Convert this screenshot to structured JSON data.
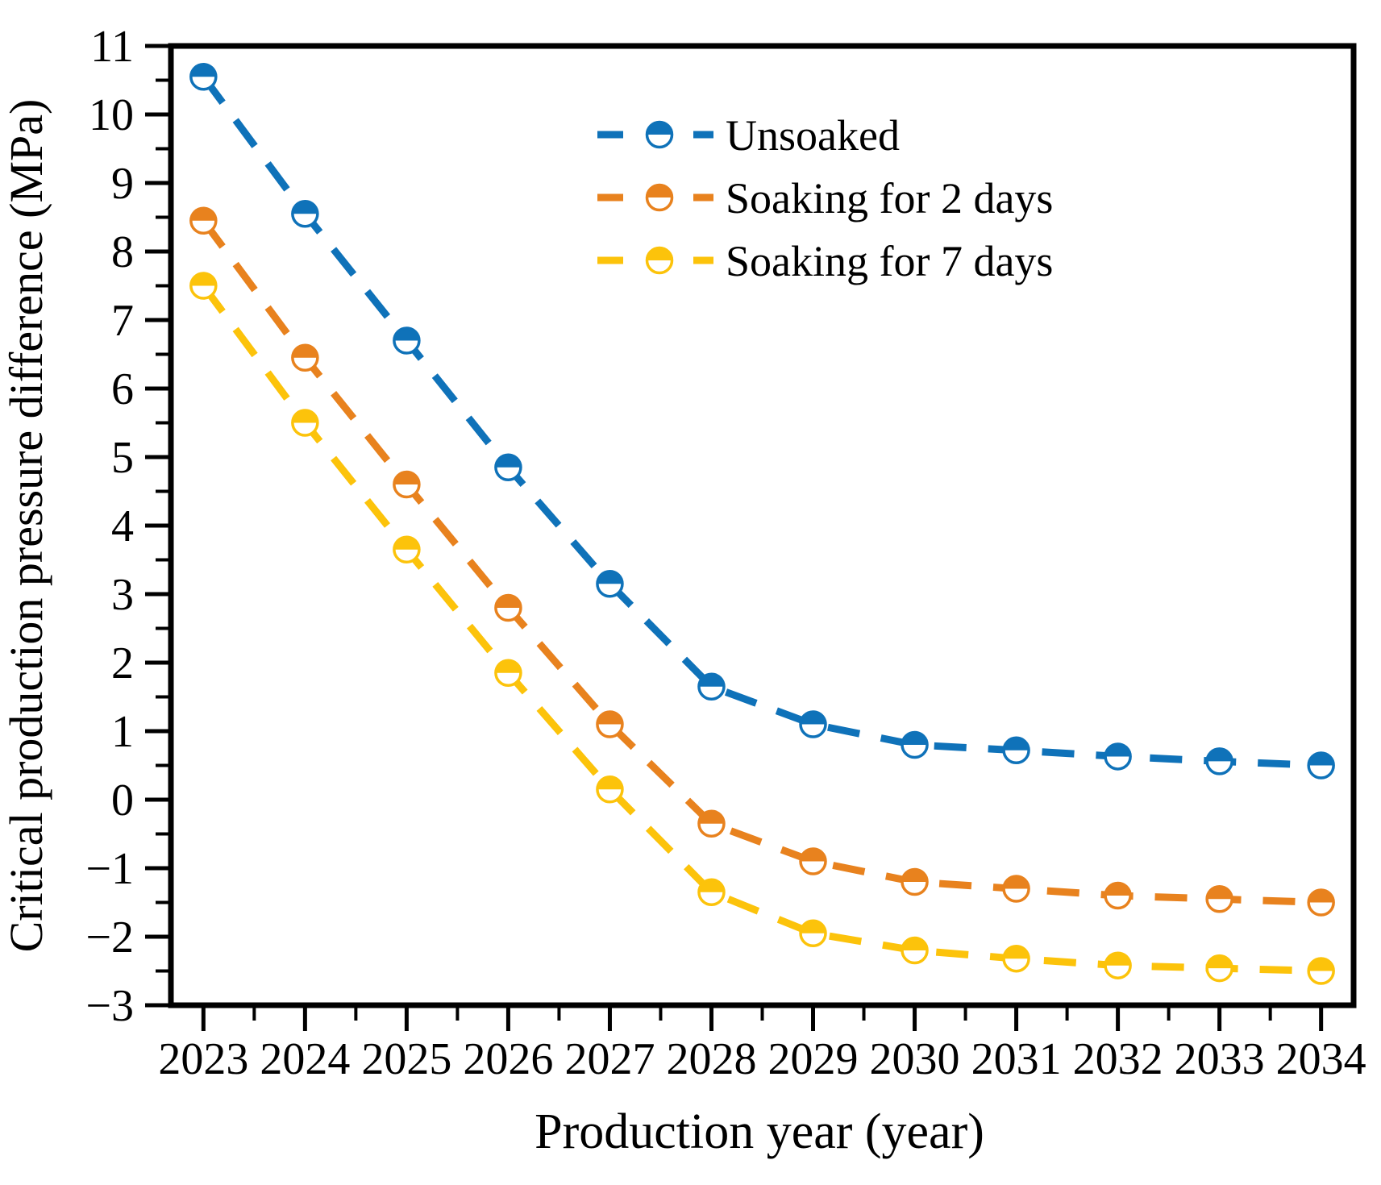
{
  "chart_data": {
    "type": "line",
    "title": "",
    "xlabel": "Production year (year)",
    "ylabel": "Critical production pressure difference (MPa)",
    "x": [
      2023,
      2024,
      2025,
      2026,
      2027,
      2028,
      2029,
      2030,
      2031,
      2032,
      2033,
      2034
    ],
    "x_tick_labels": [
      "2023",
      "2024",
      "2025",
      "2026",
      "2027",
      "2028",
      "2029",
      "2030",
      "2031",
      "2032",
      "2033",
      "2034"
    ],
    "y_tick_labels": [
      "−3",
      "−2",
      "−1",
      "0",
      "1",
      "2",
      "3",
      "4",
      "5",
      "6",
      "7",
      "8",
      "9",
      "10",
      "11"
    ],
    "y_tick_values": [
      -3,
      -2,
      -1,
      0,
      1,
      2,
      3,
      4,
      5,
      6,
      7,
      8,
      9,
      10,
      11
    ],
    "xlim": [
      2022.68,
      2034.32
    ],
    "ylim": [
      -3,
      11
    ],
    "x_minor_step": 0.5,
    "y_minor_step": 0.5,
    "grid": false,
    "line_style": "dashed",
    "marker_style": "half-filled-circle",
    "legend_position": "upper-center-inside",
    "axis_color": "#000000",
    "background_color": "#ffffff",
    "series": [
      {
        "name": "Unsoaked",
        "color": "#0f72b9",
        "values": [
          10.55,
          8.55,
          6.7,
          4.85,
          3.15,
          1.65,
          1.1,
          0.8,
          0.72,
          0.63,
          0.56,
          0.5
        ]
      },
      {
        "name": "Soaking for 2 days",
        "color": "#e8821e",
        "values": [
          8.45,
          6.45,
          4.6,
          2.8,
          1.1,
          -0.35,
          -0.9,
          -1.2,
          -1.3,
          -1.4,
          -1.45,
          -1.5
        ]
      },
      {
        "name": "Soaking for 7 days",
        "color": "#fcc30b",
        "values": [
          7.5,
          5.5,
          3.65,
          1.85,
          0.15,
          -1.35,
          -1.95,
          -2.2,
          -2.32,
          -2.42,
          -2.46,
          -2.5
        ]
      }
    ]
  }
}
